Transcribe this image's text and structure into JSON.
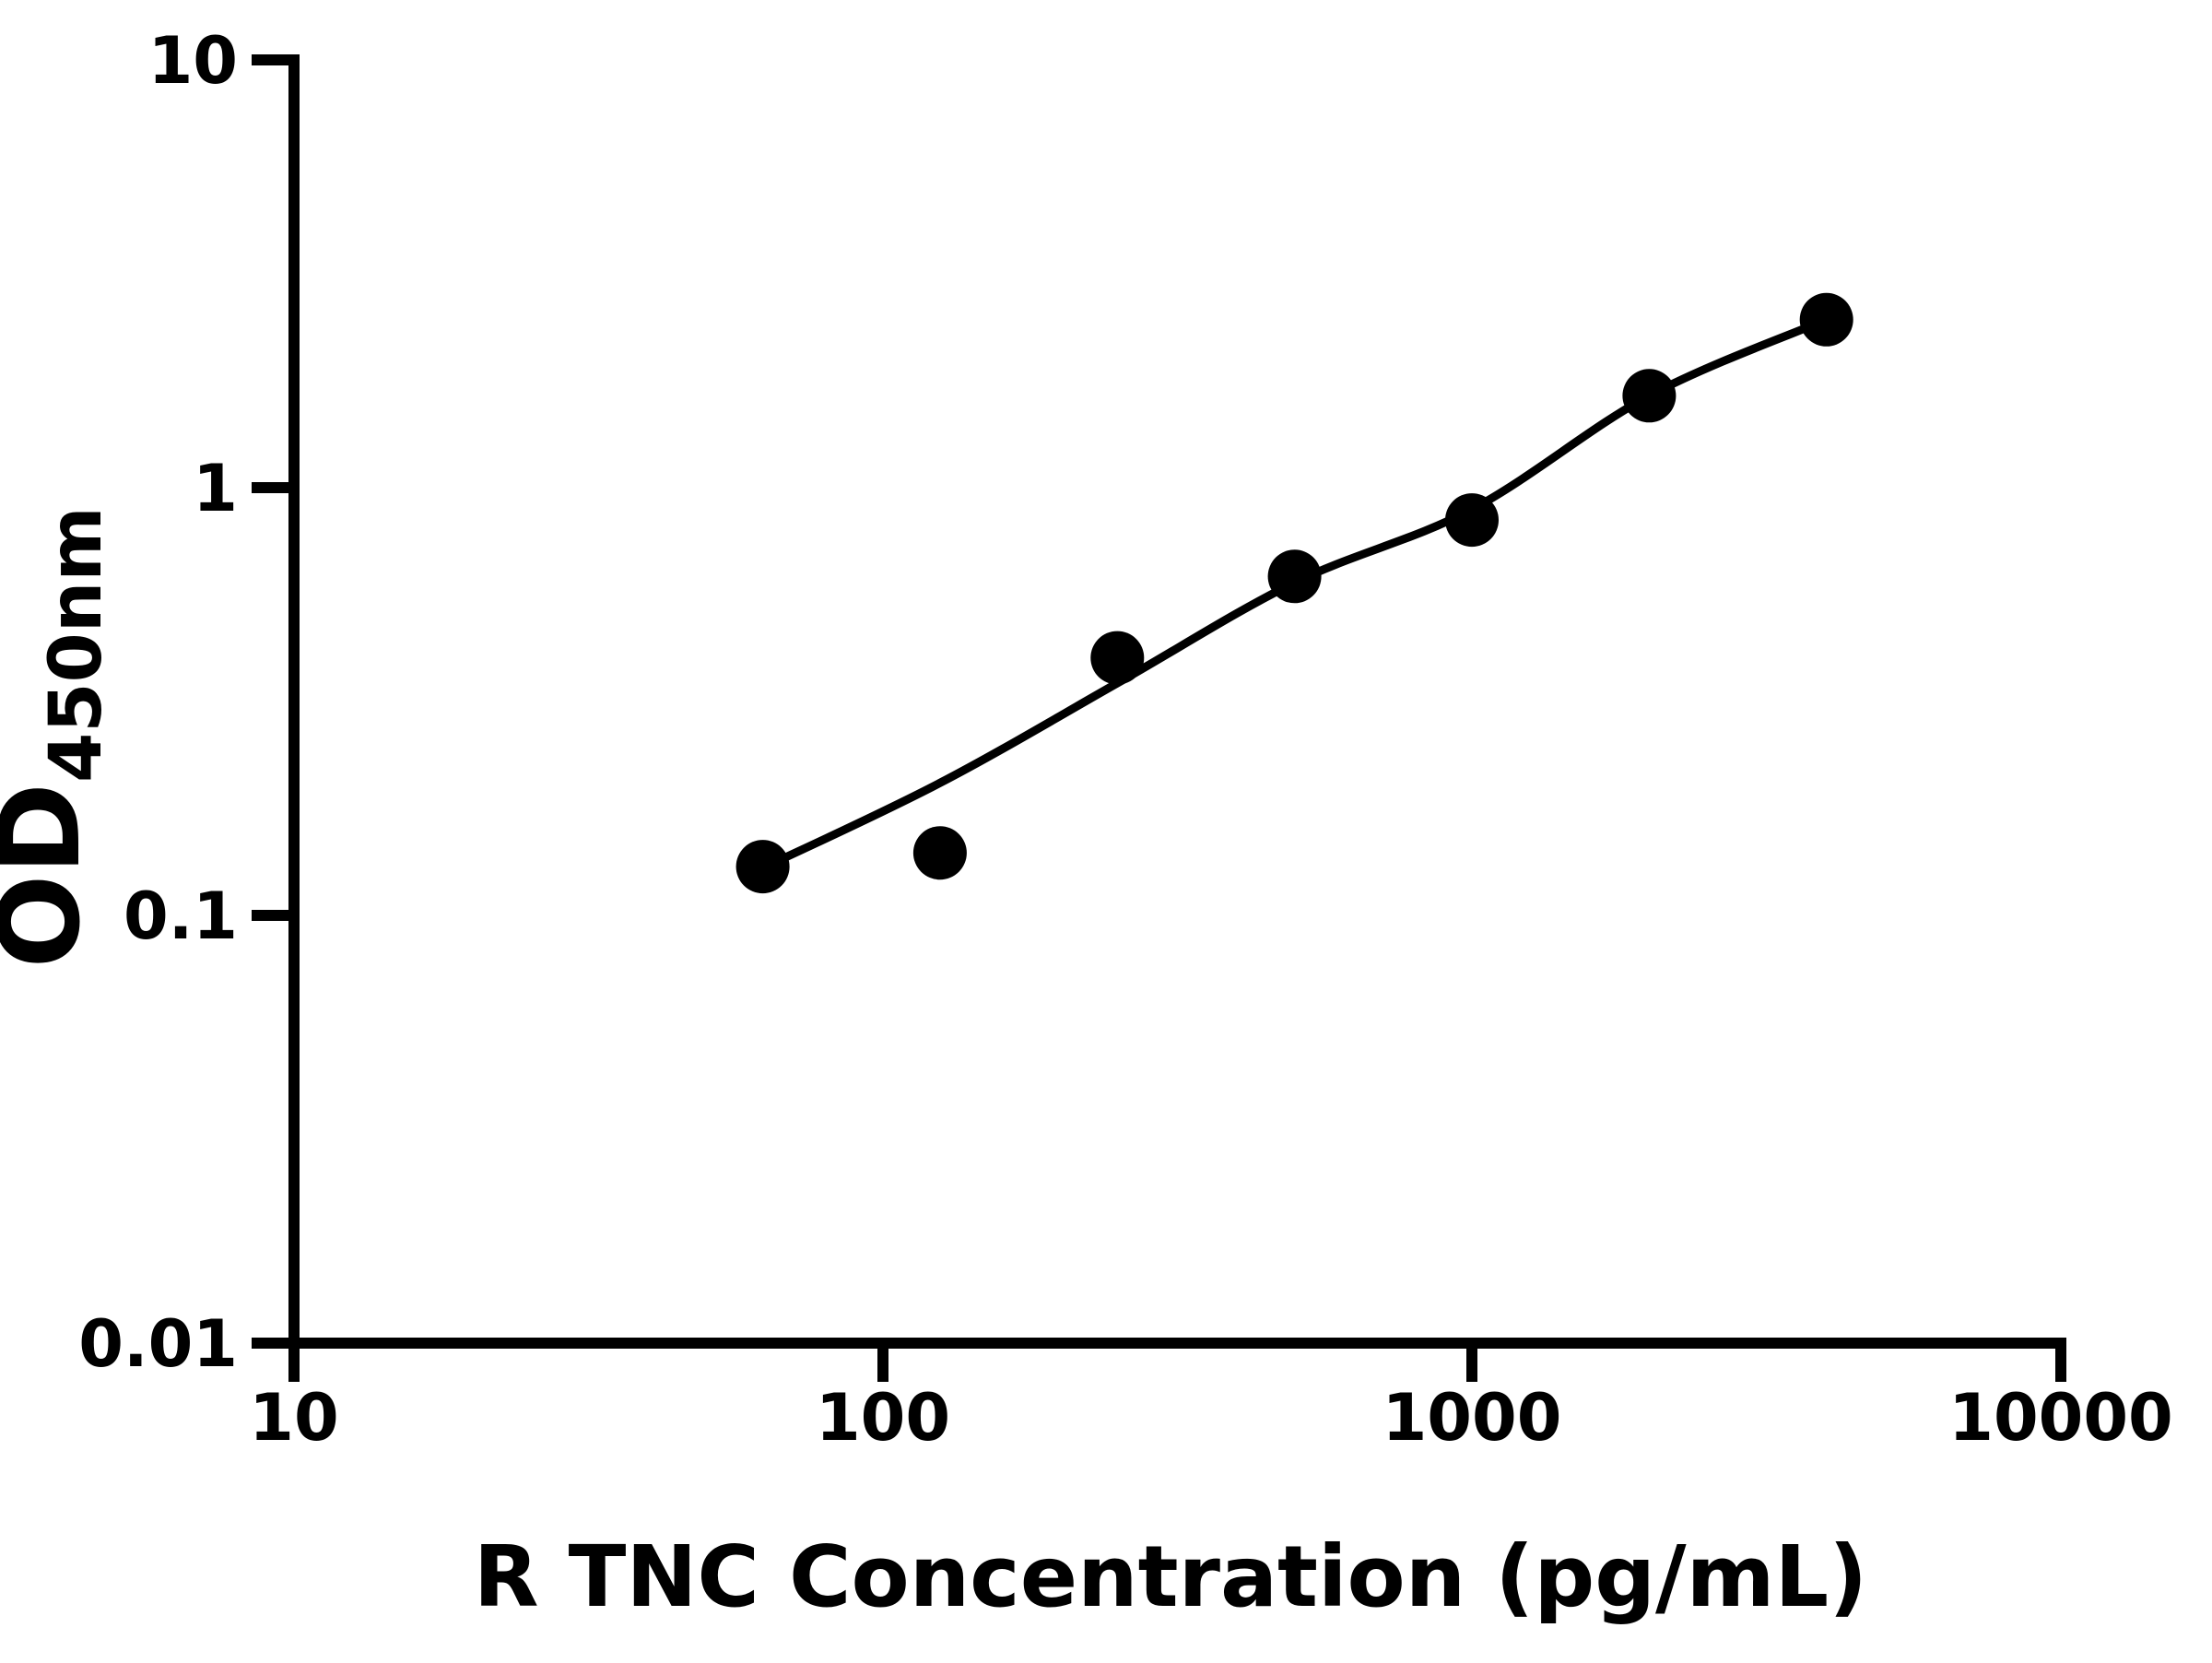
{
  "chart_data": {
    "type": "scatter",
    "title": "",
    "xlabel": "R TNC Concentration (pg/mL)",
    "ylabel_main": "OD",
    "ylabel_subscript": "450nm",
    "x_scale": "log",
    "y_scale": "log",
    "xlim": [
      10,
      10000
    ],
    "ylim": [
      0.01,
      10
    ],
    "x_ticks": [
      10,
      100,
      1000,
      10000
    ],
    "y_ticks": [
      10,
      1,
      0.1,
      0.01
    ],
    "grid": false,
    "legend": false,
    "marker": "filled-circle",
    "colors": {
      "foreground": "#000000",
      "background": "#ffffff"
    },
    "series": [
      {
        "name": "standard-points",
        "x": [
          62.5,
          125,
          250,
          500,
          1000,
          2000,
          4000
        ],
        "y": [
          0.13,
          0.14,
          0.4,
          0.62,
          0.84,
          1.64,
          2.47
        ]
      }
    ],
    "fit_curve": {
      "name": "fitted-standard-curve",
      "x": [
        62.5,
        125,
        250,
        500,
        1000,
        2000,
        4000
      ],
      "y": [
        0.129,
        0.204,
        0.349,
        0.6,
        0.89,
        1.64,
        2.47
      ]
    }
  }
}
